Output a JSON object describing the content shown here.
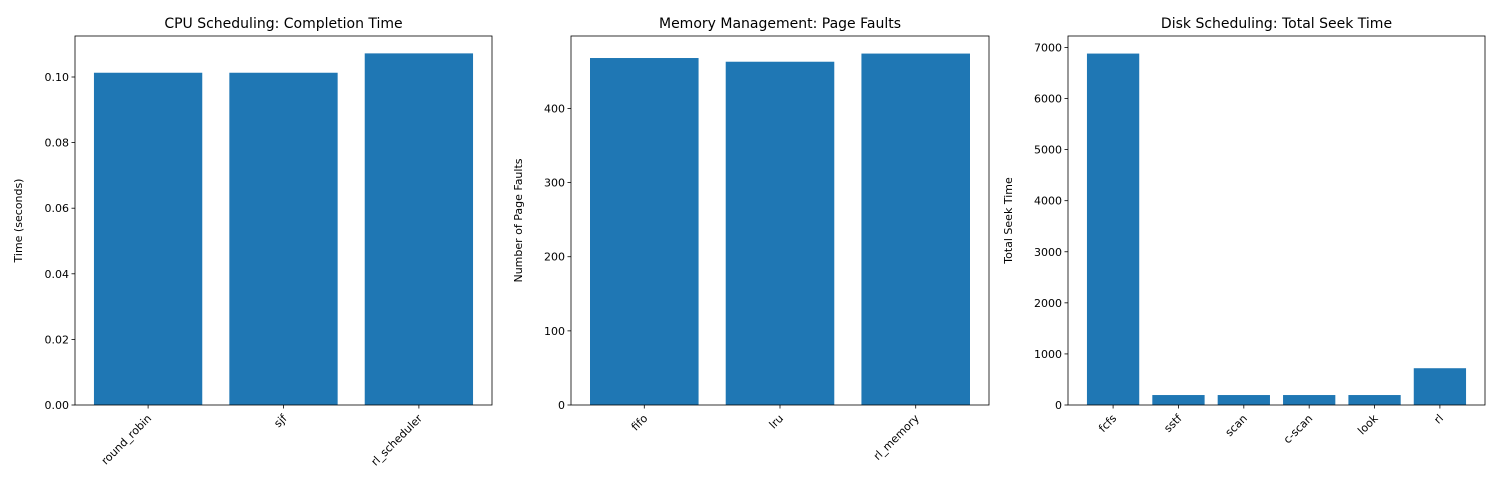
{
  "colors": {
    "bar": "#1f77b4",
    "axis": "#000000",
    "background": "#ffffff"
  },
  "chart_data": [
    {
      "type": "bar",
      "title": "CPU Scheduling: Completion Time",
      "xlabel": "",
      "ylabel": "Time (seconds)",
      "categories": [
        "round_robin",
        "sjf",
        "rl_scheduler"
      ],
      "values": [
        0.1013,
        0.1013,
        0.1072
      ],
      "ylim": [
        0,
        0.1125
      ],
      "yticks": [
        0.0,
        0.02,
        0.04,
        0.06,
        0.08,
        0.1
      ],
      "ytick_labels": [
        "0.00",
        "0.02",
        "0.04",
        "0.06",
        "0.08",
        "0.10"
      ],
      "xtick_rotation": 45,
      "grid": false
    },
    {
      "type": "bar",
      "title": "Memory Management: Page Faults",
      "xlabel": "",
      "ylabel": "Number of Page Faults",
      "categories": [
        "fifo",
        "lru",
        "rl_memory"
      ],
      "values": [
        468,
        463,
        474
      ],
      "ylim": [
        0,
        497.7
      ],
      "yticks": [
        0,
        100,
        200,
        300,
        400
      ],
      "ytick_labels": [
        "0",
        "100",
        "200",
        "300",
        "400"
      ],
      "xtick_rotation": 45,
      "grid": false
    },
    {
      "type": "bar",
      "title": "Disk Scheduling: Total Seek Time",
      "xlabel": "",
      "ylabel": "Total Seek Time",
      "categories": [
        "fcfs",
        "sstf",
        "scan",
        "c-scan",
        "look",
        "rl"
      ],
      "values": [
        6880,
        195,
        195,
        195,
        195,
        720
      ],
      "ylim": [
        0,
        7224
      ],
      "yticks": [
        0,
        1000,
        2000,
        3000,
        4000,
        5000,
        6000,
        7000
      ],
      "ytick_labels": [
        "0",
        "1000",
        "2000",
        "3000",
        "4000",
        "5000",
        "6000",
        "7000"
      ],
      "xtick_rotation": 45,
      "grid": false
    }
  ]
}
